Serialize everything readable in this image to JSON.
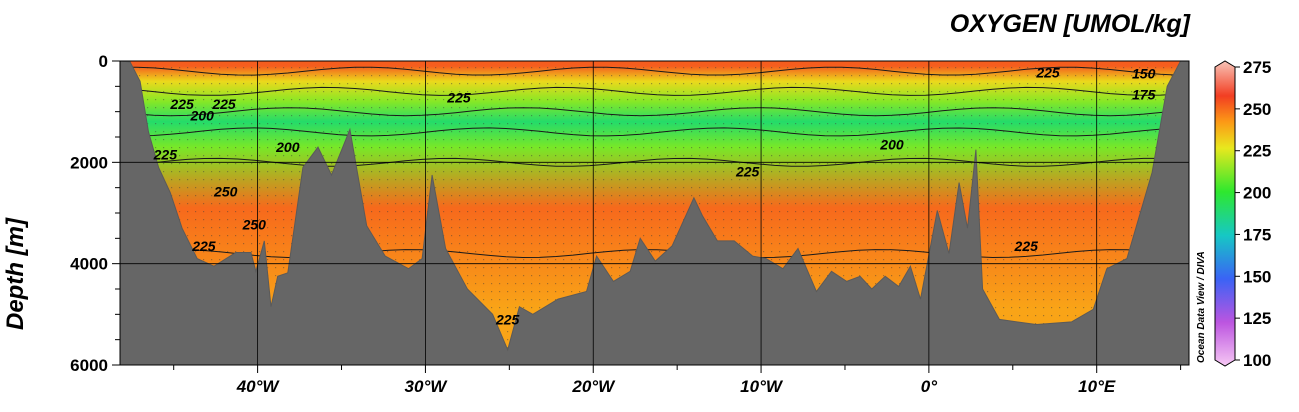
{
  "chart_data": {
    "type": "heatmap",
    "title": "OXYGEN [UMOL/kg]",
    "ylabel": "Depth [m]",
    "xlabel": "",
    "credit": "Ocean Data View / DIVA",
    "xlim": [
      -48.2,
      15.5
    ],
    "ylim": [
      6000,
      0
    ],
    "y_inverted": true,
    "x_ticks": [
      -40,
      -30,
      -20,
      -10,
      0,
      10
    ],
    "x_tick_labels": [
      "40°W",
      "30°W",
      "20°W",
      "10°W",
      "0°",
      "10°E"
    ],
    "y_ticks": [
      0,
      2000,
      4000,
      6000
    ],
    "y_tick_labels": [
      "0",
      "2000",
      "4000",
      "6000"
    ],
    "grid": true,
    "colorbar": {
      "range": [
        100,
        275
      ],
      "ticks": [
        100,
        125,
        150,
        175,
        200,
        225,
        250,
        275
      ],
      "tick_labels": [
        "100",
        "125",
        "150",
        "175",
        "200",
        "225",
        "250",
        "275"
      ],
      "stops": [
        {
          "value": 100,
          "color": "#f6c8f4"
        },
        {
          "value": 125,
          "color": "#bc55e0"
        },
        {
          "value": 150,
          "color": "#3a63f5"
        },
        {
          "value": 175,
          "color": "#16c8c4"
        },
        {
          "value": 200,
          "color": "#2ee82e"
        },
        {
          "value": 225,
          "color": "#e8e81e"
        },
        {
          "value": 240,
          "color": "#fc9a16"
        },
        {
          "value": 255,
          "color": "#f23e22"
        },
        {
          "value": 275,
          "color": "#f8c4b8"
        }
      ]
    },
    "layers": [
      {
        "depth_range": [
          0,
          200
        ],
        "oxygen": 250
      },
      {
        "depth_range": [
          200,
          600
        ],
        "oxygen": 228
      },
      {
        "depth_range": [
          600,
          1000
        ],
        "oxygen": 212
      },
      {
        "depth_range": [
          1000,
          1400
        ],
        "oxygen": 190
      },
      {
        "depth_range": [
          1400,
          2000
        ],
        "oxygen": 210
      },
      {
        "depth_range": [
          2000,
          3800
        ],
        "oxygen": 248
      },
      {
        "depth_range": [
          3800,
          6000
        ],
        "oxygen": 238
      }
    ],
    "contour_labels": [
      {
        "x": -44.5,
        "depth": 850,
        "text": "225"
      },
      {
        "x": -42.0,
        "depth": 850,
        "text": "225"
      },
      {
        "x": -43.3,
        "depth": 1080,
        "text": "200"
      },
      {
        "x": -28.0,
        "depth": 720,
        "text": "225"
      },
      {
        "x": -45.5,
        "depth": 1850,
        "text": "225"
      },
      {
        "x": -38.2,
        "depth": 1700,
        "text": "200"
      },
      {
        "x": -41.9,
        "depth": 2580,
        "text": "250"
      },
      {
        "x": -40.2,
        "depth": 3230,
        "text": "250"
      },
      {
        "x": -43.2,
        "depth": 3650,
        "text": "225"
      },
      {
        "x": -10.8,
        "depth": 2180,
        "text": "225"
      },
      {
        "x": -2.2,
        "depth": 1650,
        "text": "200"
      },
      {
        "x": 7.1,
        "depth": 230,
        "text": "225"
      },
      {
        "x": 12.8,
        "depth": 250,
        "text": "150"
      },
      {
        "x": 12.8,
        "depth": 660,
        "text": "175"
      },
      {
        "x": 5.8,
        "depth": 3650,
        "text": "225"
      },
      {
        "x": -25.1,
        "depth": 5100,
        "text": "225"
      }
    ],
    "bathymetry": [
      [
        -48.2,
        0
      ],
      [
        -47.6,
        20
      ],
      [
        -47.0,
        400
      ],
      [
        -46.5,
        1400
      ],
      [
        -45.9,
        2100
      ],
      [
        -45.2,
        2600
      ],
      [
        -44.5,
        3300
      ],
      [
        -43.6,
        3900
      ],
      [
        -42.6,
        4050
      ],
      [
        -41.3,
        3780
      ],
      [
        -40.4,
        3780
      ],
      [
        -40.1,
        4150
      ],
      [
        -39.6,
        3550
      ],
      [
        -39.2,
        4850
      ],
      [
        -38.8,
        4250
      ],
      [
        -38.2,
        4180
      ],
      [
        -37.3,
        2100
      ],
      [
        -36.4,
        1700
      ],
      [
        -35.6,
        2250
      ],
      [
        -34.5,
        1350
      ],
      [
        -33.5,
        3250
      ],
      [
        -32.4,
        3850
      ],
      [
        -31.0,
        4100
      ],
      [
        -30.2,
        3900
      ],
      [
        -29.6,
        2250
      ],
      [
        -28.8,
        3700
      ],
      [
        -27.5,
        4500
      ],
      [
        -26.0,
        5000
      ],
      [
        -25.1,
        5700
      ],
      [
        -24.4,
        4850
      ],
      [
        -23.6,
        5000
      ],
      [
        -22.1,
        4700
      ],
      [
        -20.4,
        4550
      ],
      [
        -19.8,
        3850
      ],
      [
        -18.8,
        4350
      ],
      [
        -17.8,
        4150
      ],
      [
        -17.2,
        3500
      ],
      [
        -16.3,
        3950
      ],
      [
        -15.3,
        3650
      ],
      [
        -14.0,
        2700
      ],
      [
        -13.5,
        3050
      ],
      [
        -12.6,
        3550
      ],
      [
        -11.6,
        3550
      ],
      [
        -10.5,
        3850
      ],
      [
        -9.7,
        3900
      ],
      [
        -8.7,
        4100
      ],
      [
        -7.8,
        3700
      ],
      [
        -6.7,
        4550
      ],
      [
        -5.8,
        4150
      ],
      [
        -4.9,
        4350
      ],
      [
        -4.1,
        4250
      ],
      [
        -3.4,
        4500
      ],
      [
        -2.6,
        4250
      ],
      [
        -1.8,
        4450
      ],
      [
        -1.1,
        4050
      ],
      [
        -0.5,
        4700
      ],
      [
        0.5,
        2950
      ],
      [
        1.2,
        3800
      ],
      [
        1.8,
        2400
      ],
      [
        2.3,
        3300
      ],
      [
        2.8,
        1750
      ],
      [
        3.2,
        4500
      ],
      [
        4.2,
        5100
      ],
      [
        6.4,
        5200
      ],
      [
        8.5,
        5150
      ],
      [
        9.8,
        4900
      ],
      [
        10.6,
        4100
      ],
      [
        11.8,
        3900
      ],
      [
        13.3,
        2200
      ],
      [
        14.2,
        500
      ],
      [
        15.0,
        0
      ]
    ]
  }
}
